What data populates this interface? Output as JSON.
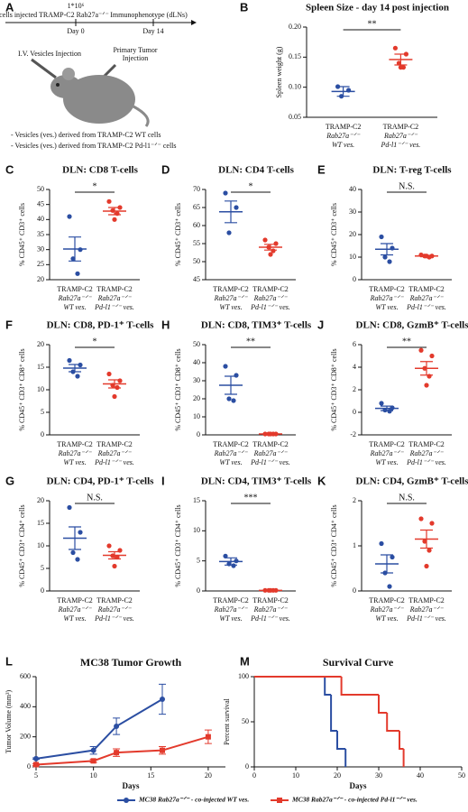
{
  "schematic": {
    "panel": "A",
    "cell_count": "1*10⁶",
    "injection_text": "cells injected TRAMP-C2 Rab27a⁻ᐟ⁻",
    "readout": "Immunophenotype (dLNs)",
    "day_start": "Day 0",
    "day_end": "Day 14",
    "iv_label": "I.V. Vesicles Injection",
    "tumor_label": [
      "Primary Tumor",
      "Injection"
    ],
    "groups": [
      "- Vesicles (ves.) derived from TRAMP-C2 WT cells",
      "- Vesicles (ves.) derived from TRAMP-C2 Pd-l1⁻ᐟ⁻ cells"
    ]
  },
  "chart_data": [
    {
      "panel": "B",
      "type": "dotplot",
      "title": "Spleen Size - day 14 post injection",
      "ylabel": "Spleen weight (g)",
      "categories": [
        [
          "TRAMP-C2",
          "Rab27a⁻ᐟ⁻",
          "WT ves."
        ],
        [
          "TRAMP-C2",
          "Rab27a⁻ᐟ⁻",
          "Pd-l1⁻ᐟ⁻ ves."
        ]
      ],
      "colors": [
        "#2b4ea2",
        "#e33a2c"
      ],
      "points": [
        [
          0.101,
          0.095,
          0.085
        ],
        [
          0.165,
          0.155,
          0.14,
          0.133,
          0.133
        ]
      ],
      "means": [
        0.093,
        0.146
      ],
      "errors": [
        0.008,
        0.009
      ],
      "ylim": [
        0.05,
        0.2
      ],
      "yticks": [
        {
          "value": 0.05,
          "label": "0.05"
        },
        {
          "value": 0.1,
          "label": "0.10"
        },
        {
          "value": 0.15,
          "label": "0.15"
        },
        {
          "value": 0.2,
          "label": "0.20"
        }
      ],
      "significance": "**"
    },
    {
      "panel": "C",
      "type": "dotplot",
      "title": "DLN: CD8 T-cells",
      "ylabel": "% CD45⁺ CD3⁺ cells",
      "categories": [
        [
          "TRAMP-C2",
          "Rab27a⁻ᐟ⁻",
          "WT ves."
        ],
        [
          "TRAMP-C2",
          "Rab27a⁻ᐟ⁻",
          "Pd-l1⁻ᐟ⁻ ves."
        ]
      ],
      "colors": [
        "#2b4ea2",
        "#e33a2c"
      ],
      "points": [
        [
          41,
          30,
          27,
          22
        ],
        [
          46,
          44,
          43,
          42,
          40
        ]
      ],
      "means": [
        30.2,
        42.8
      ],
      "errors": [
        4,
        1.2
      ],
      "ylim": [
        20,
        50
      ],
      "yticks": [
        20,
        25,
        30,
        35,
        40,
        45,
        50
      ],
      "significance": "*"
    },
    {
      "panel": "D",
      "type": "dotplot",
      "title": "DLN: CD4 T-cells",
      "ylabel": "% CD45⁺ CD3⁺ cells",
      "categories": [
        [
          "TRAMP-C2",
          "Rab27a⁻ᐟ⁻",
          "WT ves."
        ],
        [
          "TRAMP-C2",
          "Rab27a⁻ᐟ⁻",
          "Pd-l1⁻ᐟ⁻ ves."
        ]
      ],
      "colors": [
        "#2b4ea2",
        "#e33a2c"
      ],
      "points": [
        [
          69,
          65,
          58
        ],
        [
          56,
          55,
          54,
          53,
          52
        ]
      ],
      "means": [
        63.8,
        54
      ],
      "errors": [
        3,
        0.8
      ],
      "ylim": [
        45,
        70
      ],
      "yticks": [
        45,
        50,
        55,
        60,
        65,
        70
      ],
      "significance": "*"
    },
    {
      "panel": "E",
      "type": "dotplot",
      "title": "DLN: T-reg T-cells",
      "ylabel": "% CD45⁺ CD3⁺ cells",
      "categories": [
        [
          "TRAMP-C2",
          "Rab27a⁻ᐟ⁻",
          "WT ves."
        ],
        [
          "TRAMP-C2",
          "Rab27a⁻ᐟ⁻",
          "Pd-l1⁻ᐟ⁻ ves."
        ]
      ],
      "colors": [
        "#2b4ea2",
        "#e33a2c"
      ],
      "points": [
        [
          19,
          14,
          10,
          8
        ],
        [
          11,
          10.5,
          10.5,
          10,
          10.5
        ]
      ],
      "means": [
        13.5,
        10.5
      ],
      "errors": [
        2.5,
        0.3
      ],
      "ylim": [
        0,
        40
      ],
      "yticks": [
        0,
        10,
        20,
        30,
        40
      ],
      "significance": "N.S."
    },
    {
      "panel": "F",
      "type": "dotplot",
      "title": "DLN: CD8, PD-1⁺ T-cells",
      "ylabel": "% CD45⁺ CD3⁺ CD8⁺ cells",
      "categories": [
        [
          "TRAMP-C2",
          "Rab27a⁻ᐟ⁻",
          "WT ves."
        ],
        [
          "TRAMP-C2",
          "Rab27a⁻ᐟ⁻",
          "Pd-l1⁻ᐟ⁻ ves."
        ]
      ],
      "colors": [
        "#2b4ea2",
        "#e33a2c"
      ],
      "points": [
        [
          16.5,
          15.5,
          14,
          13
        ],
        [
          13.5,
          12,
          11,
          10.5,
          8.5
        ]
      ],
      "means": [
        14.8,
        11.3
      ],
      "errors": [
        0.8,
        0.9
      ],
      "ylim": [
        0,
        20
      ],
      "yticks": [
        0,
        5,
        10,
        15,
        20
      ],
      "significance": "*"
    },
    {
      "panel": "H",
      "type": "dotplot",
      "title": "DLN: CD8, TIM3⁺ T-cells",
      "ylabel": "% CD45⁺ CD3⁺ CD8⁺ cells",
      "categories": [
        [
          "TRAMP-C2",
          "Rab27a⁻ᐟ⁻",
          "WT ves."
        ],
        [
          "TRAMP-C2",
          "Rab27a⁻ᐟ⁻",
          "Pd-l1⁻ᐟ⁻ ves."
        ]
      ],
      "colors": [
        "#2b4ea2",
        "#e33a2c"
      ],
      "points": [
        [
          38,
          33,
          20,
          19
        ],
        [
          0.5,
          0.5,
          0.5,
          0.5,
          0.5
        ]
      ],
      "means": [
        27.5,
        0.5
      ],
      "errors": [
        5,
        0.1
      ],
      "ylim": [
        0,
        50
      ],
      "yticks": [
        0,
        10,
        20,
        30,
        40,
        50
      ],
      "significance": "**"
    },
    {
      "panel": "J",
      "type": "dotplot",
      "title": "DLN: CD8, GzmB⁺ T-cells",
      "ylabel": "% CD45⁺ CD3⁺ CD8⁺ cells",
      "categories": [
        [
          "TRAMP-C2",
          "Rab27a⁻ᐟ⁻",
          "WT ves."
        ],
        [
          "TRAMP-C2",
          "Rab27a⁻ᐟ⁻",
          "Pd-l1⁻ᐟ⁻ ves."
        ]
      ],
      "colors": [
        "#2b4ea2",
        "#e33a2c"
      ],
      "points": [
        [
          0.8,
          0.4,
          0.2,
          0.1
        ],
        [
          5.5,
          5,
          3.9,
          3.2,
          2.4
        ]
      ],
      "means": [
        0.35,
        3.9
      ],
      "errors": [
        0.2,
        0.6
      ],
      "ylim": [
        -2,
        6
      ],
      "yticks": [
        -2,
        0,
        2,
        4,
        6
      ],
      "significance": "**"
    },
    {
      "panel": "G",
      "type": "dotplot",
      "title": "DLN: CD4, PD-1⁺ T-cells",
      "ylabel": "% CD45⁺ CD3⁺ CD4⁺ cells",
      "categories": [
        [
          "TRAMP-C2",
          "Rab27a⁻ᐟ⁻",
          "WT ves."
        ],
        [
          "TRAMP-C2",
          "Rab27a⁻ᐟ⁻",
          "Pd-l1⁻ᐟ⁻ ves."
        ]
      ],
      "colors": [
        "#2b4ea2",
        "#e33a2c"
      ],
      "points": [
        [
          18.5,
          13,
          8.5,
          7
        ],
        [
          10,
          9,
          7.8,
          7.5,
          5.5
        ]
      ],
      "means": [
        11.7,
        7.9
      ],
      "errors": [
        2.5,
        0.8
      ],
      "ylim": [
        0,
        20
      ],
      "yticks": [
        0,
        5,
        10,
        15,
        20
      ],
      "significance": "N.S."
    },
    {
      "panel": "I",
      "type": "dotplot",
      "title": "DLN: CD4, TIM3⁺ T-cells",
      "ylabel": "% CD45⁺ CD3⁺ CD4⁺ cells",
      "categories": [
        [
          "TRAMP-C2",
          "Rab27a⁻ᐟ⁻",
          "WT ves."
        ],
        [
          "TRAMP-C2",
          "Rab27a⁻ᐟ⁻",
          "Pd-l1⁻ᐟ⁻ ves."
        ]
      ],
      "colors": [
        "#2b4ea2",
        "#e33a2c"
      ],
      "points": [
        [
          5.8,
          5,
          4.5,
          4.2
        ],
        [
          0.1,
          0.1,
          0.1,
          0.1,
          0.1
        ]
      ],
      "means": [
        4.9,
        0.1
      ],
      "errors": [
        0.6,
        0.05
      ],
      "ylim": [
        0,
        15
      ],
      "yticks": [
        0,
        5,
        10,
        15
      ],
      "significance": "***"
    },
    {
      "panel": "K",
      "type": "dotplot",
      "title": "DLN: CD4, GzmB⁺ T-cells",
      "ylabel": "% CD45⁺ CD3⁺ CD4⁺ cells",
      "categories": [
        [
          "TRAMP-C2",
          "Rab27a⁻ᐟ⁻",
          "WT ves."
        ],
        [
          "TRAMP-C2",
          "Rab27a⁻ᐟ⁻",
          "Pd-l1⁻ᐟ⁻ ves."
        ]
      ],
      "colors": [
        "#2b4ea2",
        "#e33a2c"
      ],
      "points": [
        [
          1.05,
          0.75,
          0.4,
          0.1
        ],
        [
          1.6,
          1.5,
          1.1,
          0.9,
          0.55
        ]
      ],
      "means": [
        0.6,
        1.15
      ],
      "errors": [
        0.2,
        0.2
      ],
      "ylim": [
        0,
        2
      ],
      "yticks": [
        0,
        1,
        2
      ],
      "significance": "N.S."
    },
    {
      "panel": "L",
      "type": "line",
      "title": "MC38 Tumor Growth",
      "xlabel": "Days",
      "ylabel": "Tumor Volume (mm³)",
      "xlim": [
        5,
        21.5
      ],
      "xticks": [
        5,
        10,
        15,
        20
      ],
      "ylim": [
        0,
        600
      ],
      "yticks": [
        0,
        200,
        400,
        600
      ],
      "legend": "bottom",
      "series": [
        {
          "name": "MC38 Rab27a⁻ᐟ⁻ - co-injected WT ves.",
          "color": "#2b4ea2",
          "marker": "circle",
          "x": [
            5,
            10,
            12,
            16
          ],
          "values": [
            55,
            110,
            270,
            450
          ],
          "errors": [
            5,
            25,
            55,
            100
          ]
        },
        {
          "name": "MC38 Rab27a⁻ᐟ⁻ - co-injected Pd-l1⁻ᐟ⁻ ves.",
          "color": "#e33a2c",
          "marker": "square",
          "x": [
            5,
            10,
            12,
            16,
            20
          ],
          "values": [
            15,
            40,
            95,
            110,
            200
          ],
          "errors": [
            5,
            10,
            25,
            25,
            45
          ]
        }
      ]
    },
    {
      "panel": "M",
      "type": "step",
      "title": "Survival Curve",
      "xlabel": "Days",
      "ylabel": "Percent survival",
      "xlim": [
        0,
        50
      ],
      "xticks": [
        0,
        10,
        20,
        30,
        40,
        50
      ],
      "ylim": [
        0,
        100
      ],
      "yticks": [
        0,
        50,
        100
      ],
      "series": [
        {
          "color": "#2b4ea2",
          "x": [
            0,
            17,
            18.5,
            20,
            22
          ],
          "values": [
            100,
            80,
            40,
            20,
            0
          ]
        },
        {
          "color": "#e33a2c",
          "x": [
            0,
            21,
            30,
            32,
            35,
            36
          ],
          "values": [
            100,
            80,
            60,
            40,
            20,
            0
          ]
        }
      ]
    }
  ]
}
